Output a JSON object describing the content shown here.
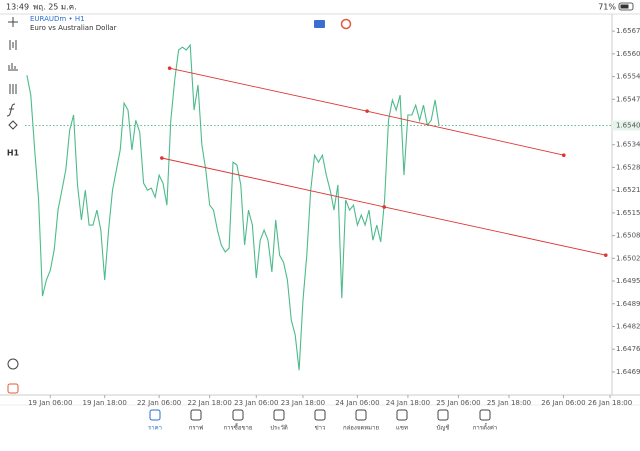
{
  "status_bar": {
    "time": "13:49",
    "date": "พฤ. 25 ม.ค.",
    "battery": "71%"
  },
  "toolbar": {
    "timeframe": "H1"
  },
  "chart_data": {
    "type": "line",
    "symbol": "EURAUDm • H1",
    "description": "Euro vs Australian Dollar",
    "series": [
      {
        "name": "EURAUDm",
        "color": "#4dbb8a",
        "values": [
          1.65544,
          1.65487,
          1.6533,
          1.65187,
          1.64912,
          1.64958,
          1.64986,
          1.65044,
          1.65158,
          1.65215,
          1.65273,
          1.65387,
          1.6543,
          1.6523,
          1.6513,
          1.65215,
          1.65115,
          1.65115,
          1.65158,
          1.65101,
          1.64958,
          1.65101,
          1.65215,
          1.65273,
          1.6533,
          1.65464,
          1.65444,
          1.6533,
          1.65415,
          1.65381,
          1.65235,
          1.65215,
          1.65221,
          1.65195,
          1.65258,
          1.65235,
          1.65172,
          1.65415,
          1.6553,
          1.65616,
          1.65624,
          1.65616,
          1.6563,
          1.65444,
          1.65516,
          1.65344,
          1.65273,
          1.65172,
          1.65158,
          1.65101,
          1.65058,
          1.65038,
          1.65049,
          1.65295,
          1.65287,
          1.6523,
          1.65058,
          1.65158,
          1.65115,
          1.64964,
          1.65072,
          1.65101,
          1.65072,
          1.64981,
          1.6513,
          1.65029,
          1.65009,
          1.64958,
          1.64843,
          1.64801,
          1.647,
          1.64901,
          1.65029,
          1.65215,
          1.65315,
          1.65295,
          1.65315,
          1.65258,
          1.65215,
          1.65158,
          1.6523,
          1.64906,
          1.65187,
          1.65158,
          1.65172,
          1.65115,
          1.65144,
          1.65115,
          1.65158,
          1.65072,
          1.65115,
          1.65067,
          1.65187,
          1.65415,
          1.65473,
          1.65444,
          1.65487,
          1.65258,
          1.6543,
          1.6543,
          1.65458,
          1.65415,
          1.65458,
          1.65401,
          1.65415,
          1.65473,
          1.65401
        ]
      }
    ],
    "xlim": [
      -0.5,
      150.5
    ],
    "xticks": [
      {
        "value": 6,
        "label": "19 Jan 06:00"
      },
      {
        "value": 20,
        "label": "19 Jan 18:00"
      },
      {
        "value": 34,
        "label": "22 Jan 06:00"
      },
      {
        "value": 47,
        "label": "22 Jan 18:00"
      },
      {
        "value": 59,
        "label": "23 Jan 06:00"
      },
      {
        "value": 71,
        "label": "23 Jan 18:00"
      },
      {
        "value": 85,
        "label": "24 Jan 06:00"
      },
      {
        "value": 98,
        "label": "24 Jan 18:00"
      },
      {
        "value": 111,
        "label": "25 Jan 06:00"
      },
      {
        "value": 124,
        "label": "25 Jan 18:00"
      },
      {
        "value": 138,
        "label": "26 Jan 06:00"
      },
      {
        "value": 150,
        "label": "26 Jan 18:00"
      }
    ],
    "ylim": [
      1.64629,
      1.65719
    ],
    "yticks": [
      {
        "value": 1.6567,
        "label": "1.65670"
      },
      {
        "value": 1.65605,
        "label": "1.65605"
      },
      {
        "value": 1.6554,
        "label": "1.65540"
      },
      {
        "value": 1.65475,
        "label": "1.65475"
      },
      {
        "value": 1.65345,
        "label": "1.65345"
      },
      {
        "value": 1.6528,
        "label": "1.65280"
      },
      {
        "value": 1.65215,
        "label": "1.65215"
      },
      {
        "value": 1.6515,
        "label": "1.65150"
      },
      {
        "value": 1.65085,
        "label": "1.65085"
      },
      {
        "value": 1.6502,
        "label": "1.65020"
      },
      {
        "value": 1.64955,
        "label": "1.64955"
      },
      {
        "value": 1.6489,
        "label": "1.64890"
      },
      {
        "value": 1.64825,
        "label": "1.64825"
      },
      {
        "value": 1.6476,
        "label": "1.64760"
      },
      {
        "value": 1.64695,
        "label": "1.64695"
      }
    ],
    "current_price": {
      "value": 1.654,
      "label": "1.65400",
      "color": "#2fa86f"
    },
    "trendlines": [
      {
        "color": "#e03535",
        "x": [
          36.7,
          87.5,
          138.1
        ],
        "y": [
          1.65564,
          1.65441,
          1.65315
        ]
      },
      {
        "color": "#e03535",
        "x": [
          34.7,
          91.9,
          148.9
        ],
        "y": [
          1.65307,
          1.65167,
          1.65029
        ]
      }
    ]
  },
  "nav": {
    "items": [
      "ราคา",
      "กราฟ",
      "การซื้อขาย",
      "ประวัติ",
      "ข่าว",
      "กล่องจดหมาย",
      "แชท",
      "บัญชี",
      "การตั้งค่า"
    ]
  }
}
